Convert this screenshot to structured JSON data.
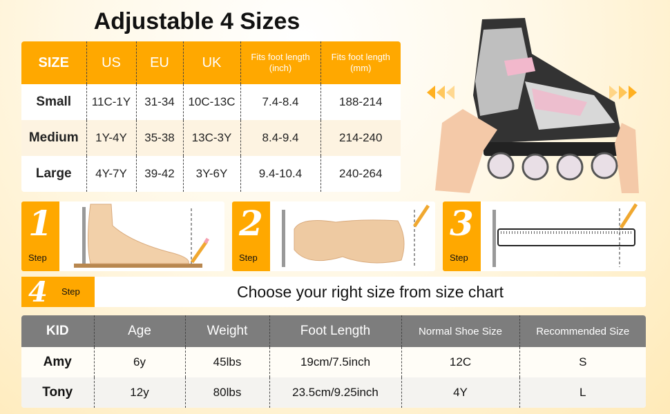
{
  "title": "Adjustable 4 Sizes",
  "size_table": {
    "headers": [
      "SIZE",
      "US",
      "EU",
      "UK",
      "Fits foot length (inch)",
      "Fits foot length (mm)"
    ],
    "rows": [
      [
        "Small",
        "11C-1Y",
        "31-34",
        "10C-13C",
        "7.4-8.4",
        "188-214"
      ],
      [
        "Medium",
        "1Y-4Y",
        "35-38",
        "13C-3Y",
        "8.4-9.4",
        "214-240"
      ],
      [
        "Large",
        "4Y-7Y",
        "39-42",
        "3Y-6Y",
        "9.4-10.4",
        "240-264"
      ]
    ]
  },
  "steps": [
    {
      "number": "1",
      "label": "Step"
    },
    {
      "number": "2",
      "label": "Step"
    },
    {
      "number": "3",
      "label": "Step"
    },
    {
      "number": "4",
      "label": "Step",
      "text": "Choose your right size from size chart"
    }
  ],
  "kid_table": {
    "headers": [
      "KID",
      "Age",
      "Weight",
      "Foot Length",
      "Normal Shoe Size",
      "Recommended Size"
    ],
    "rows": [
      [
        "Amy",
        "6y",
        "45lbs",
        "19cm/7.5inch",
        "12C",
        "S"
      ],
      [
        "Tony",
        "12y",
        "80lbs",
        "23.5cm/9.25inch",
        "4Y",
        "L"
      ]
    ]
  },
  "colors": {
    "accent": "#ffa800",
    "kid_header": "#7d7d7d",
    "skate_pink": "#f2b8cc"
  }
}
